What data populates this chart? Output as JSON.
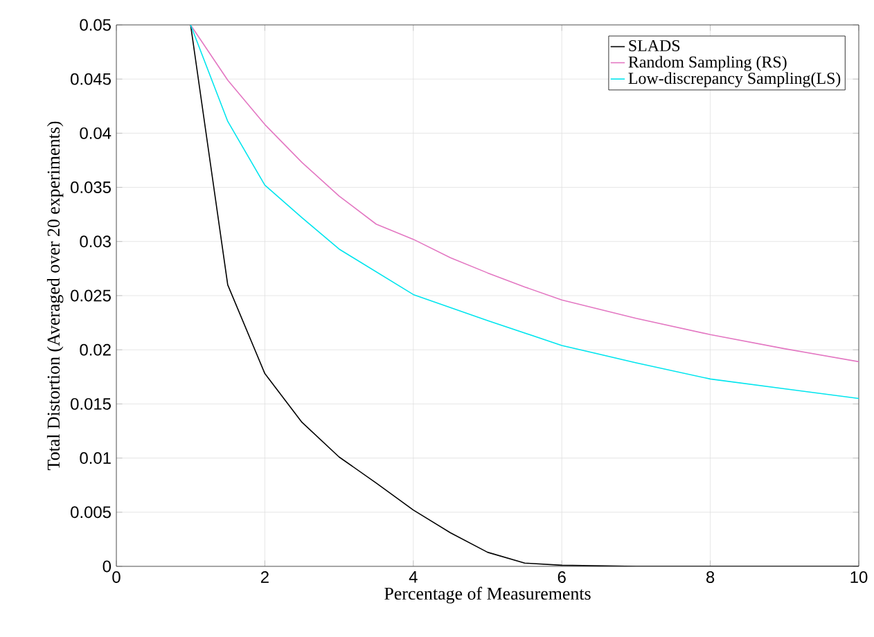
{
  "chart_data": {
    "type": "line",
    "xlabel": "Percentage of Measurements",
    "ylabel": "Total Distortion (Averaged over 20 experiments)",
    "xlim": [
      0,
      10
    ],
    "ylim": [
      0,
      0.05
    ],
    "xticks": [
      0,
      2,
      4,
      6,
      8,
      10
    ],
    "yticks": [
      0,
      0.005,
      0.01,
      0.015,
      0.02,
      0.025,
      0.03,
      0.035,
      0.04,
      0.045,
      0.05
    ],
    "grid": true,
    "legend": "top right",
    "series": [
      {
        "name": "SLADS",
        "color": "#000000",
        "x": [
          1,
          1.5,
          2,
          2.5,
          3,
          3.5,
          4,
          4.5,
          5,
          5.5,
          6,
          7,
          8,
          9,
          10
        ],
        "values": [
          0.05,
          0.026,
          0.0178,
          0.0133,
          0.0101,
          0.0077,
          0.0052,
          0.0031,
          0.0013,
          0.0003,
          0.0001,
          0,
          0,
          0,
          0
        ]
      },
      {
        "name": "Random Sampling (RS)",
        "color": "#e377c2",
        "x": [
          1,
          1.5,
          2,
          2.5,
          3,
          3.5,
          4,
          4.5,
          5,
          5.5,
          6,
          7,
          8,
          9,
          10
        ],
        "values": [
          0.05,
          0.0449,
          0.0408,
          0.0373,
          0.0342,
          0.0316,
          0.0302,
          0.0285,
          0.0271,
          0.0258,
          0.0246,
          0.0229,
          0.0214,
          0.0201,
          0.0189
        ]
      },
      {
        "name": "Low-discrepancy Sampling(LS)",
        "color": "#00e5ee",
        "x": [
          1,
          1.5,
          2,
          2.5,
          3,
          3.5,
          4,
          5,
          6,
          7,
          8,
          9,
          10
        ],
        "values": [
          0.05,
          0.0411,
          0.0352,
          0.0322,
          0.0293,
          0.0272,
          0.0251,
          0.0227,
          0.0204,
          0.0188,
          0.0173,
          0.0164,
          0.0155
        ]
      }
    ]
  }
}
